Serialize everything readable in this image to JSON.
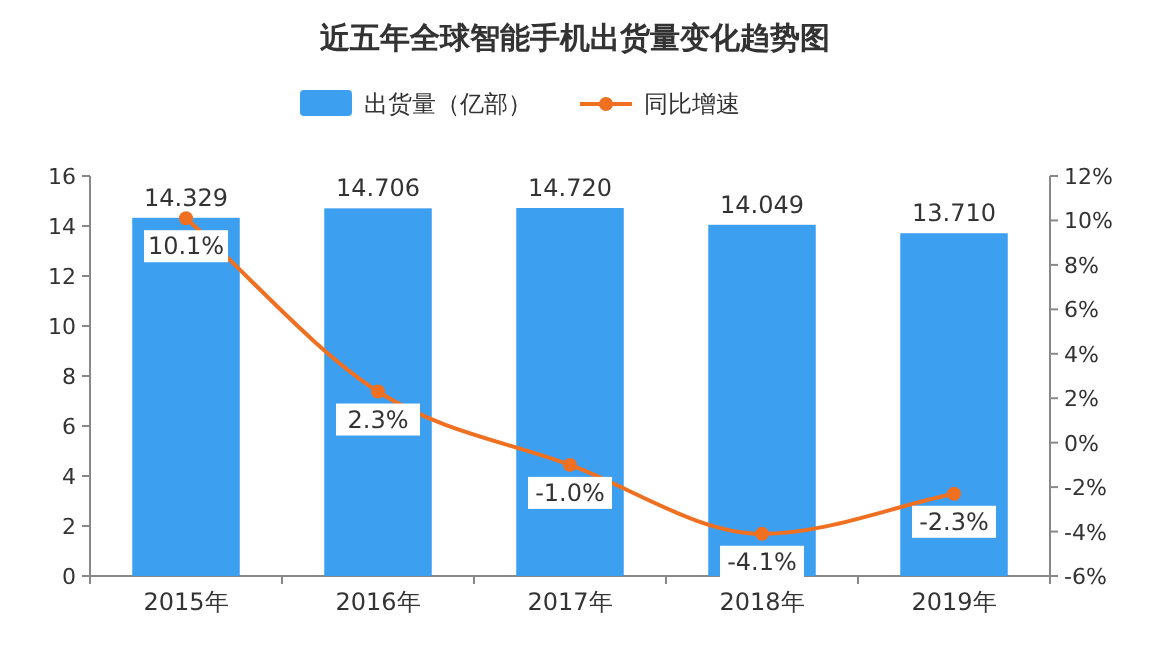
{
  "chart_data": {
    "type": "bar",
    "title": "近五年全球智能手机出货量变化趋势图",
    "categories": [
      "2015年",
      "2016年",
      "2017年",
      "2018年",
      "2019年"
    ],
    "series": [
      {
        "name": "出货量（亿部）",
        "color": "#3d9ff0",
        "values": [
          14.329,
          14.706,
          14.72,
          14.049,
          13.71
        ],
        "value_labels": [
          "14.329",
          "14.706",
          "14.720",
          "14.049",
          "13.710"
        ]
      },
      {
        "name": "同比增速",
        "type": "line",
        "axis": "y2",
        "color": "#f07022",
        "marker": "circle",
        "values": [
          10.1,
          2.3,
          -1.0,
          -4.1,
          -2.3
        ],
        "value_labels": [
          "10.1%",
          "2.3%",
          "-1.0%",
          "-4.1%",
          "-2.3%"
        ]
      }
    ],
    "ylim": [
      0,
      16
    ],
    "yticks": [
      0,
      2,
      4,
      6,
      8,
      10,
      12,
      14,
      16
    ],
    "y2lim": [
      -6,
      12
    ],
    "y2ticks": [
      {
        "value": -6,
        "label": "-6%"
      },
      {
        "value": -4,
        "label": "-4%"
      },
      {
        "value": -2,
        "label": "-2%"
      },
      {
        "value": 0,
        "label": "0%"
      },
      {
        "value": 2,
        "label": "2%"
      },
      {
        "value": 4,
        "label": "4%"
      },
      {
        "value": 6,
        "label": "6%"
      },
      {
        "value": 8,
        "label": "8%"
      },
      {
        "value": 10,
        "label": "10%"
      },
      {
        "value": 12,
        "label": "12%"
      }
    ],
    "legend": "top",
    "grid": false
  }
}
